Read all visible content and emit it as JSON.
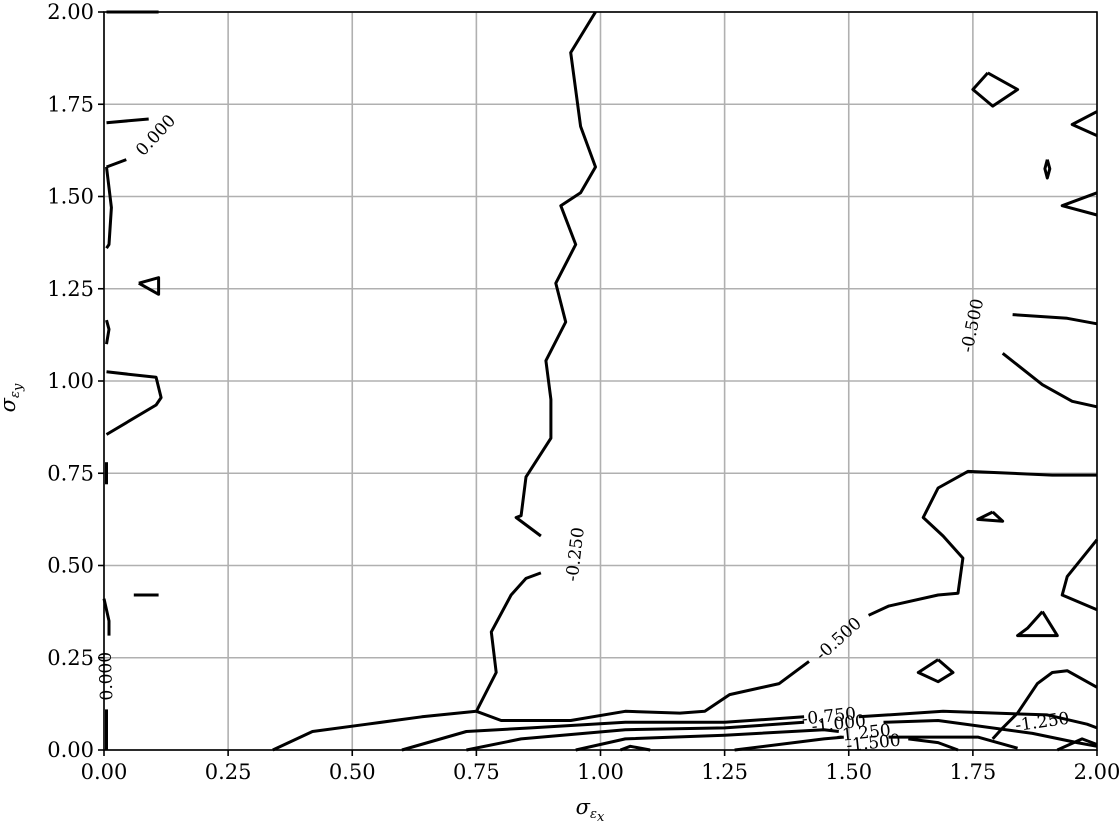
{
  "chart_data": {
    "type": "contour",
    "title": "",
    "xlabel": {
      "main": "σ",
      "sub": "ε",
      "subsub": "x"
    },
    "ylabel": {
      "main": "σ",
      "sub": "ε",
      "subsub": "y"
    },
    "xlim": [
      0,
      2
    ],
    "ylim": [
      0,
      2
    ],
    "grid": true,
    "xticks": [
      0,
      0.25,
      0.5,
      0.75,
      1.0,
      1.25,
      1.5,
      1.75,
      2.0
    ],
    "yticks": [
      0,
      0.25,
      0.5,
      0.75,
      1.0,
      1.25,
      1.5,
      1.75,
      2.0
    ],
    "xtick_labels": [
      "0.00",
      "0.25",
      "0.50",
      "0.75",
      "1.00",
      "1.25",
      "1.50",
      "1.75",
      "2.00"
    ],
    "ytick_labels": [
      "0.00",
      "0.25",
      "0.50",
      "0.75",
      "1.00",
      "1.25",
      "1.50",
      "1.75",
      "2.00"
    ],
    "line_color": "#000000",
    "grid_color": "#b0b0b0",
    "contours": [
      {
        "level": 0.0,
        "points": [
          [
            0.005,
            2.0
          ],
          [
            0.11,
            2.0
          ]
        ]
      },
      {
        "level": 0.0,
        "points": [
          [
            0.005,
            1.7
          ],
          [
            0.09,
            1.71
          ]
        ]
      },
      {
        "level": 0.0,
        "points": [
          [
            0.045,
            1.6
          ],
          [
            0.005,
            1.58
          ]
        ]
      },
      {
        "level": 0.0,
        "points": [
          [
            0.005,
            1.58
          ],
          [
            0.015,
            1.47
          ],
          [
            0.01,
            1.37
          ],
          [
            0.005,
            1.36
          ]
        ]
      },
      {
        "level": 0.0,
        "points": [
          [
            0.07,
            1.265
          ],
          [
            0.11,
            1.28
          ],
          [
            0.11,
            1.235
          ],
          [
            0.07,
            1.265
          ]
        ]
      },
      {
        "level": 0.0,
        "points": [
          [
            0.005,
            1.165
          ],
          [
            0.01,
            1.14
          ],
          [
            0.005,
            1.1
          ]
        ]
      },
      {
        "level": 0.0,
        "points": [
          [
            0.005,
            1.025
          ],
          [
            0.105,
            1.01
          ],
          [
            0.115,
            0.955
          ],
          [
            0.105,
            0.935
          ],
          [
            0.005,
            0.855
          ]
        ]
      },
      {
        "level": 0.0,
        "points": [
          [
            0.005,
            0.78
          ],
          [
            0.005,
            0.72
          ]
        ]
      },
      {
        "level": 0.0,
        "points": [
          [
            0.06,
            0.42
          ],
          [
            0.11,
            0.42
          ]
        ]
      },
      {
        "level": 0.0,
        "points": [
          [
            0.0,
            0.41
          ],
          [
            0.01,
            0.35
          ],
          [
            0.01,
            0.31
          ]
        ]
      },
      {
        "level": 0.0,
        "points": [
          [
            0.005,
            0.11
          ],
          [
            0.005,
            0.0
          ]
        ]
      },
      {
        "level": -0.25,
        "points": [
          [
            0.99,
            2.0
          ],
          [
            0.94,
            1.89
          ],
          [
            0.96,
            1.69
          ],
          [
            0.99,
            1.58
          ],
          [
            0.96,
            1.51
          ],
          [
            0.92,
            1.475
          ],
          [
            0.95,
            1.37
          ],
          [
            0.91,
            1.265
          ],
          [
            0.93,
            1.16
          ],
          [
            0.89,
            1.055
          ],
          [
            0.9,
            0.95
          ],
          [
            0.9,
            0.845
          ],
          [
            0.85,
            0.74
          ],
          [
            0.84,
            0.635
          ],
          [
            0.83,
            0.63
          ],
          [
            0.88,
            0.58
          ]
        ]
      },
      {
        "level": -0.25,
        "points": [
          [
            0.88,
            0.48
          ],
          [
            0.85,
            0.465
          ],
          [
            0.82,
            0.42
          ],
          [
            0.78,
            0.32
          ],
          [
            0.79,
            0.21
          ],
          [
            0.75,
            0.105
          ],
          [
            0.64,
            0.09
          ],
          [
            0.53,
            0.07
          ],
          [
            0.42,
            0.05
          ],
          [
            0.34,
            0.0
          ]
        ]
      },
      {
        "level": -0.5,
        "points": [
          [
            1.54,
            0.365
          ],
          [
            1.58,
            0.39
          ],
          [
            1.68,
            0.42
          ],
          [
            1.72,
            0.425
          ],
          [
            1.73,
            0.52
          ],
          [
            1.69,
            0.58
          ],
          [
            1.65,
            0.63
          ],
          [
            1.68,
            0.71
          ],
          [
            1.74,
            0.755
          ],
          [
            1.91,
            0.745
          ],
          [
            1.99,
            0.745
          ],
          [
            2.0,
            0.745
          ]
        ]
      },
      {
        "level": -0.5,
        "points": [
          [
            1.42,
            0.24
          ],
          [
            1.36,
            0.18
          ],
          [
            1.26,
            0.15
          ],
          [
            1.21,
            0.105
          ],
          [
            1.16,
            0.1
          ],
          [
            1.05,
            0.105
          ],
          [
            0.94,
            0.08
          ],
          [
            0.8,
            0.08
          ],
          [
            0.75,
            0.105
          ]
        ]
      },
      {
        "level": -0.5,
        "points": [
          [
            1.83,
            1.18
          ],
          [
            1.94,
            1.17
          ],
          [
            2.0,
            1.155
          ]
        ]
      },
      {
        "level": -0.5,
        "points": [
          [
            1.81,
            1.075
          ],
          [
            1.89,
            0.99
          ],
          [
            1.95,
            0.945
          ],
          [
            2.0,
            0.93
          ]
        ]
      },
      {
        "level": -0.5,
        "points": [
          [
            1.78,
            1.835
          ],
          [
            1.75,
            1.79
          ],
          [
            1.79,
            1.745
          ],
          [
            1.84,
            1.79
          ],
          [
            1.78,
            1.835
          ]
        ]
      },
      {
        "level": -0.5,
        "points": [
          [
            2.0,
            1.73
          ],
          [
            1.95,
            1.695
          ],
          [
            2.0,
            1.665
          ]
        ]
      },
      {
        "level": -0.5,
        "points": [
          [
            1.9,
            1.6
          ],
          [
            1.895,
            1.575
          ],
          [
            1.9,
            1.55
          ],
          [
            1.905,
            1.575
          ],
          [
            1.9,
            1.6
          ]
        ]
      },
      {
        "level": -0.5,
        "points": [
          [
            2.0,
            1.51
          ],
          [
            1.93,
            1.475
          ],
          [
            2.0,
            1.45
          ]
        ]
      },
      {
        "level": -0.5,
        "points": [
          [
            1.79,
            0.645
          ],
          [
            1.76,
            0.625
          ],
          [
            1.81,
            0.62
          ],
          [
            1.79,
            0.645
          ]
        ]
      },
      {
        "level": -0.5,
        "points": [
          [
            1.89,
            0.375
          ],
          [
            1.86,
            0.33
          ],
          [
            1.84,
            0.31
          ],
          [
            1.92,
            0.31
          ],
          [
            1.89,
            0.375
          ]
        ]
      },
      {
        "level": -0.5,
        "points": [
          [
            1.68,
            0.245
          ],
          [
            1.64,
            0.21
          ],
          [
            1.68,
            0.185
          ],
          [
            1.71,
            0.21
          ],
          [
            1.68,
            0.245
          ]
        ]
      },
      {
        "level": -0.5,
        "points": [
          [
            2.0,
            0.57
          ],
          [
            1.94,
            0.47
          ],
          [
            1.93,
            0.42
          ],
          [
            2.0,
            0.38
          ]
        ]
      },
      {
        "level": -0.5,
        "points": [
          [
            2.0,
            0.17
          ],
          [
            1.94,
            0.215
          ],
          [
            1.91,
            0.21
          ],
          [
            1.88,
            0.18
          ],
          [
            1.84,
            0.1
          ],
          [
            1.81,
            0.06
          ],
          [
            1.79,
            0.03
          ]
        ]
      },
      {
        "level": -0.75,
        "points": [
          [
            0.6,
            0.0
          ],
          [
            0.73,
            0.05
          ],
          [
            0.86,
            0.06
          ],
          [
            1.05,
            0.075
          ],
          [
            1.25,
            0.075
          ],
          [
            1.41,
            0.09
          ]
        ]
      },
      {
        "level": -0.75,
        "points": [
          [
            1.52,
            0.09
          ],
          [
            1.69,
            0.105
          ],
          [
            1.9,
            0.095
          ],
          [
            1.98,
            0.07
          ],
          [
            2.0,
            0.06
          ]
        ]
      },
      {
        "level": -1.0,
        "points": [
          [
            0.73,
            0.0
          ],
          [
            0.84,
            0.03
          ],
          [
            1.05,
            0.055
          ],
          [
            1.25,
            0.06
          ],
          [
            1.41,
            0.075
          ]
        ]
      },
      {
        "level": -1.0,
        "points": [
          [
            1.57,
            0.075
          ],
          [
            1.68,
            0.08
          ],
          [
            1.87,
            0.045
          ],
          [
            1.96,
            0.02
          ],
          [
            2.0,
            0.01
          ]
        ]
      },
      {
        "level": -1.25,
        "points": [
          [
            0.95,
            0.0
          ],
          [
            1.05,
            0.03
          ],
          [
            1.25,
            0.04
          ],
          [
            1.45,
            0.055
          ],
          [
            1.48,
            0.05
          ]
        ]
      },
      {
        "level": -1.25,
        "points": [
          [
            1.58,
            0.035
          ],
          [
            1.76,
            0.035
          ],
          [
            1.84,
            0.005
          ]
        ]
      },
      {
        "level": -1.25,
        "points": [
          [
            1.92,
            0.0
          ],
          [
            1.97,
            0.03
          ],
          [
            1.99,
            0.02
          ],
          [
            2.0,
            0.015
          ]
        ]
      },
      {
        "level": -1.5,
        "points": [
          [
            1.04,
            0.0
          ],
          [
            1.06,
            0.01
          ],
          [
            1.1,
            0.0
          ]
        ]
      },
      {
        "level": -1.5,
        "points": [
          [
            1.27,
            0.0
          ],
          [
            1.45,
            0.03
          ],
          [
            1.49,
            0.035
          ]
        ]
      },
      {
        "level": -1.5,
        "points": [
          [
            1.62,
            0.03
          ],
          [
            1.68,
            0.02
          ],
          [
            1.72,
            0.0
          ]
        ]
      }
    ],
    "contour_labels": [
      {
        "text": "0.000",
        "x": 0.105,
        "y": 1.665,
        "rotation": -47
      },
      {
        "text": "-0.250",
        "x": 0.95,
        "y": 0.53,
        "rotation": -83
      },
      {
        "text": "-0.500",
        "x": 1.75,
        "y": 1.15,
        "rotation": -78
      },
      {
        "text": "-0.500",
        "x": 1.48,
        "y": 0.3,
        "rotation": -42
      },
      {
        "text": "0.000",
        "x": 0.005,
        "y": 0.2,
        "rotation": -92
      },
      {
        "text": "-0.750",
        "x": 1.46,
        "y": 0.09,
        "rotation": -6
      },
      {
        "text": "-1.000",
        "x": 1.48,
        "y": 0.07,
        "rotation": -6
      },
      {
        "text": "-1.250",
        "x": 1.53,
        "y": 0.045,
        "rotation": -6
      },
      {
        "text": "-1.500",
        "x": 1.55,
        "y": 0.018,
        "rotation": -6
      },
      {
        "text": "-1.250",
        "x": 1.89,
        "y": 0.075,
        "rotation": -8
      }
    ]
  }
}
